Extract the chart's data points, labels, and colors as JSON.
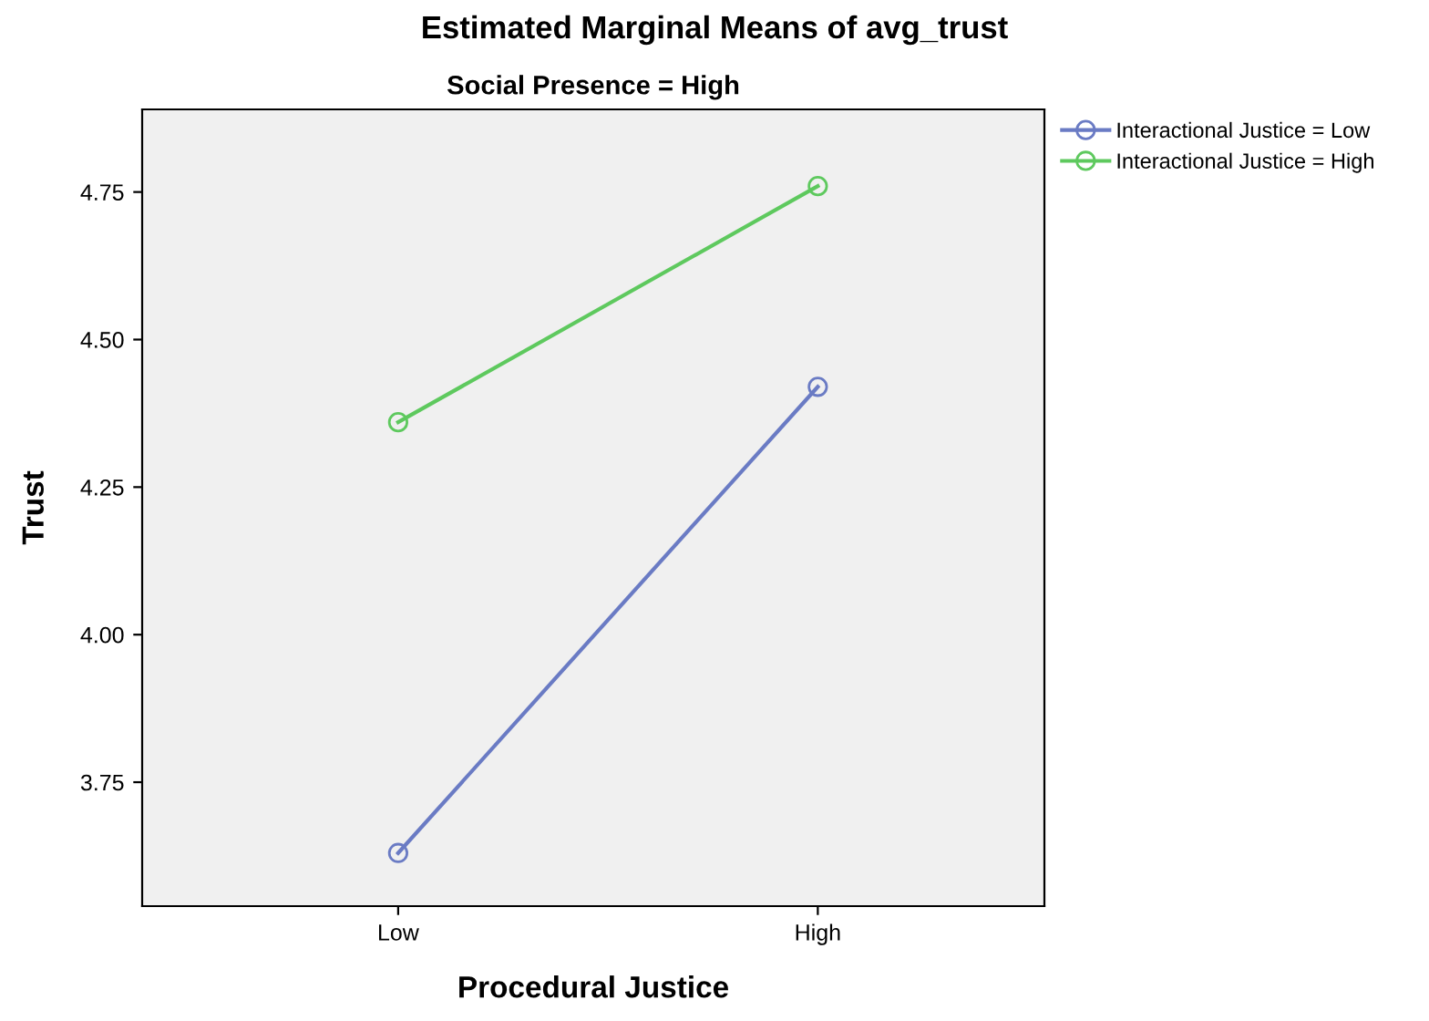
{
  "chart_data": {
    "type": "line",
    "title": "Estimated Marginal Means of avg_trust",
    "subtitle": "Social Presence = High",
    "xlabel": "Procedural Justice",
    "ylabel": "Trust",
    "categories": [
      "Low",
      "High"
    ],
    "series": [
      {
        "name": "Interactional Justice = Low",
        "color": "#6a7bc4",
        "values": [
          3.63,
          4.42
        ]
      },
      {
        "name": "Interactional Justice = High",
        "color": "#5ec95e",
        "values": [
          4.36,
          4.76
        ]
      }
    ],
    "ylim": [
      3.54,
      4.89
    ],
    "yticks": [
      {
        "value": 3.75,
        "label": "3.75"
      },
      {
        "value": 4.0,
        "label": "4.00"
      },
      {
        "value": 4.25,
        "label": "4.25"
      },
      {
        "value": 4.5,
        "label": "4.50"
      },
      {
        "value": 4.75,
        "label": "4.75"
      }
    ],
    "grid": false,
    "legend": "top right",
    "marker": "circle",
    "line_style": "solid"
  }
}
